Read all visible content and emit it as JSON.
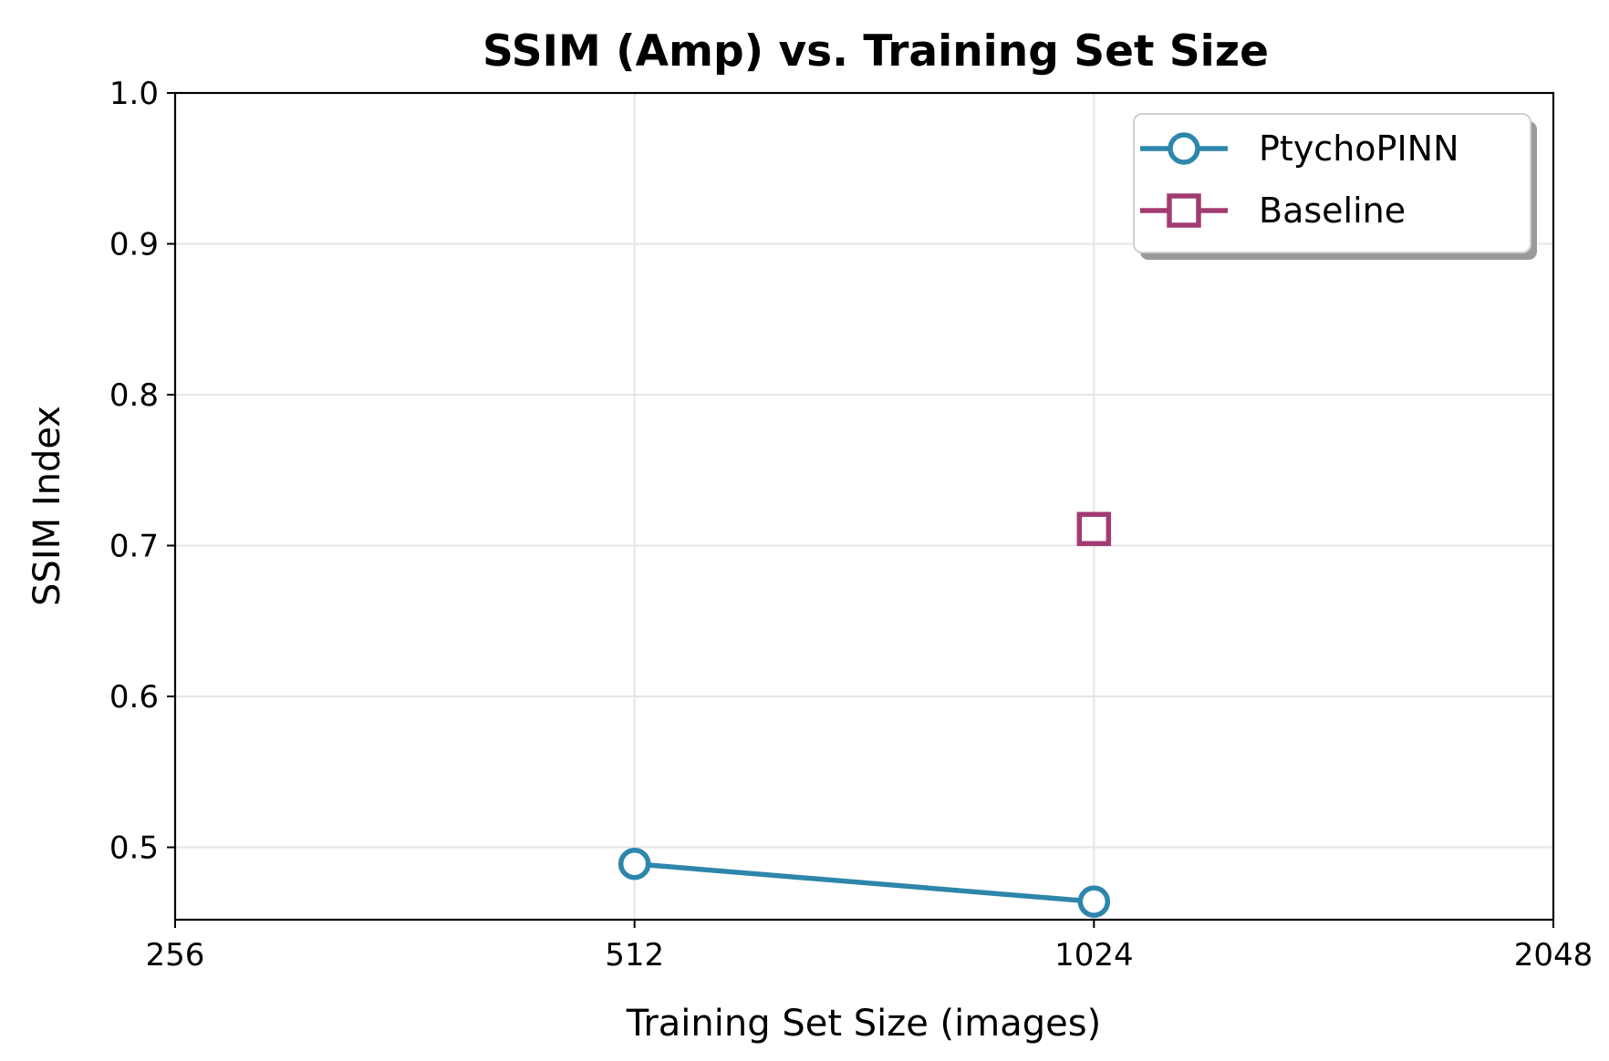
{
  "chart_data": {
    "type": "line",
    "title": "SSIM (Amp) vs. Training Set Size",
    "xlabel": "Training Set Size (images)",
    "ylabel": "SSIM Index",
    "x_scale": "log2",
    "xlim": [
      256,
      2048
    ],
    "ylim": [
      0.452,
      1.0
    ],
    "x_ticks": [
      256,
      512,
      1024,
      2048
    ],
    "x_tick_labels": [
      "256",
      "512",
      "1024",
      "2048"
    ],
    "y_ticks": [
      0.5,
      0.6,
      0.7,
      0.8,
      0.9,
      1.0
    ],
    "y_tick_labels": [
      "0.5",
      "0.6",
      "0.7",
      "0.8",
      "0.9",
      "1.0"
    ],
    "grid": true,
    "legend_position": "top-right",
    "series": [
      {
        "name": "PtychoPINN",
        "marker": "circle",
        "color": "#2e86ab",
        "x": [
          512,
          1024
        ],
        "y": [
          0.489,
          0.464
        ]
      },
      {
        "name": "Baseline",
        "marker": "square",
        "color": "#a23b72",
        "x": [
          1024
        ],
        "y": [
          0.711
        ]
      }
    ]
  }
}
